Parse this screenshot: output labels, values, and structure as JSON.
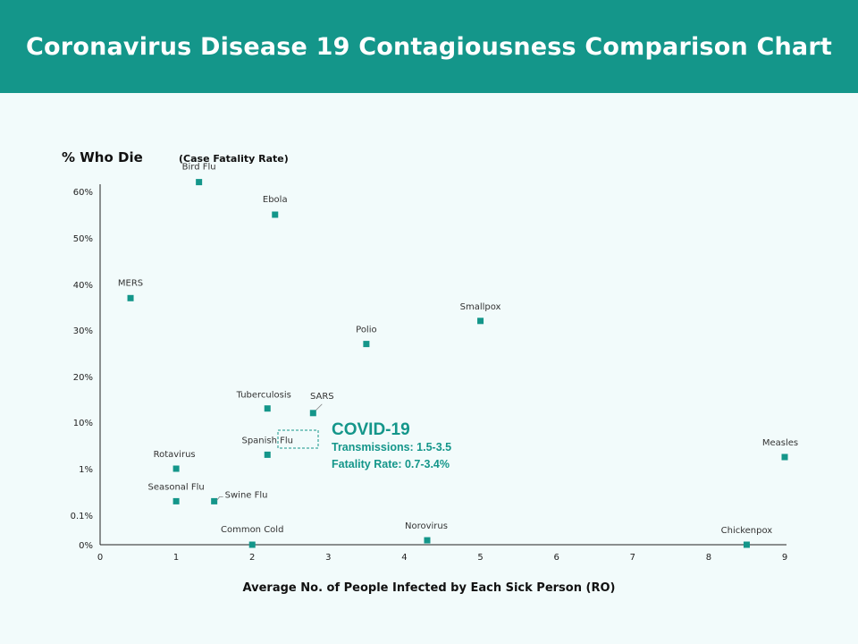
{
  "header": {
    "title": "Coronavirus Disease 19 Contagiousness Comparison Chart"
  },
  "colors": {
    "header_bg": "#14968a",
    "marker": "#14968a",
    "accent": "#14968a",
    "background": "#f2fbfb"
  },
  "chart_data": {
    "type": "scatter",
    "title": "Coronavirus Disease 19 Contagiousness Comparison Chart",
    "ylabel": "% Who Die",
    "ylabel_sub": "(Case Fatality Rate)",
    "xlabel": "Average No. of People Infected by Each Sick Person (RO)",
    "xlim": [
      0,
      9
    ],
    "x_ticks": [
      "0",
      "1",
      "2",
      "3",
      "4",
      "5",
      "6",
      "7",
      "8",
      "9"
    ],
    "y_ticks": [
      "0%",
      "0.1%",
      "1%",
      "10%",
      "20%",
      "30%",
      "40%",
      "50%",
      "60%"
    ],
    "y_scale_note": "non-linear category scale: 0%, 0.1%, 1%, 10%, 20%, 30%, 40%, 50%, 60%",
    "points": [
      {
        "name": "Bird Flu",
        "x": 1.3,
        "y_level": 8.2
      },
      {
        "name": "Ebola",
        "x": 2.3,
        "y_level": 7.5
      },
      {
        "name": "MERS",
        "x": 0.4,
        "y_level": 5.7
      },
      {
        "name": "Smallpox",
        "x": 5.0,
        "y_level": 5.2
      },
      {
        "name": "Polio",
        "x": 3.5,
        "y_level": 4.7
      },
      {
        "name": "Tuberculosis",
        "x": 2.2,
        "y_level": 3.3
      },
      {
        "name": "SARS",
        "x": 2.8,
        "y_level": 3.2
      },
      {
        "name": "Spanish Flu",
        "x": 2.2,
        "y_level": 2.3
      },
      {
        "name": "Measles",
        "x": 9.0,
        "y_level": 2.25
      },
      {
        "name": "Rotavirus",
        "x": 1.0,
        "y_level": 2.0
      },
      {
        "name": "Seasonal Flu",
        "x": 1.0,
        "y_level": 1.3
      },
      {
        "name": "Swine Flu",
        "x": 1.5,
        "y_level": 1.3
      },
      {
        "name": "Common Cold",
        "x": 2.0,
        "y_level": 0.0
      },
      {
        "name": "Norovirus",
        "x": 4.3,
        "y_level": 0.15
      },
      {
        "name": "Chickenpox",
        "x": 8.5,
        "y_level": 0.0
      }
    ],
    "annotation": {
      "title": "COVID-19",
      "line1": "Transmissions: 1.5-3.5",
      "line2": "Fatality Rate: 0.7-3.4%"
    }
  }
}
